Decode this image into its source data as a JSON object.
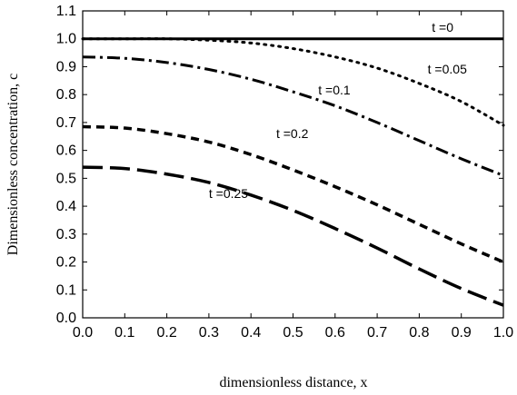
{
  "chart_data": {
    "type": "line",
    "title": "",
    "xlabel": "dimensionless distance, x",
    "ylabel": "Dimensionless concentration, c",
    "xlim": [
      0.0,
      1.0
    ],
    "ylim": [
      0.0,
      1.1
    ],
    "xticks": [
      "0.0",
      "0.1",
      "0.2",
      "0.3",
      "0.4",
      "0.5",
      "0.6",
      "0.7",
      "0.8",
      "0.9",
      "1.0"
    ],
    "yticks": [
      "0.0",
      "0.1",
      "0.2",
      "0.3",
      "0.4",
      "0.5",
      "0.6",
      "0.7",
      "0.8",
      "0.9",
      "1.0",
      "1.1"
    ],
    "grid": false,
    "legend": "none",
    "series": [
      {
        "name": "t=0",
        "style": "solid",
        "x": [
          0.0,
          1.0
        ],
        "y": [
          1.0,
          1.0
        ]
      },
      {
        "name": "t=0.05",
        "style": "dotted",
        "x": [
          0.0,
          0.1,
          0.2,
          0.3,
          0.4,
          0.5,
          0.6,
          0.7,
          0.8,
          0.9,
          1.0
        ],
        "y": [
          1.0,
          1.0,
          1.0,
          0.995,
          0.985,
          0.965,
          0.935,
          0.895,
          0.84,
          0.775,
          0.69
        ]
      },
      {
        "name": "t=0.1",
        "style": "dash-dot",
        "x": [
          0.0,
          0.1,
          0.2,
          0.3,
          0.4,
          0.5,
          0.6,
          0.7,
          0.8,
          0.9,
          1.0
        ],
        "y": [
          0.935,
          0.93,
          0.915,
          0.89,
          0.855,
          0.81,
          0.76,
          0.7,
          0.635,
          0.57,
          0.51
        ]
      },
      {
        "name": "t=0.2",
        "style": "dashed",
        "x": [
          0.0,
          0.1,
          0.2,
          0.3,
          0.4,
          0.5,
          0.6,
          0.7,
          0.8,
          0.9,
          1.0
        ],
        "y": [
          0.685,
          0.68,
          0.66,
          0.63,
          0.585,
          0.53,
          0.47,
          0.405,
          0.335,
          0.265,
          0.2
        ]
      },
      {
        "name": "t=0.25",
        "style": "long-dash",
        "x": [
          0.0,
          0.1,
          0.2,
          0.3,
          0.4,
          0.5,
          0.6,
          0.7,
          0.8,
          0.9,
          1.0
        ],
        "y": [
          0.54,
          0.535,
          0.515,
          0.485,
          0.44,
          0.385,
          0.32,
          0.25,
          0.175,
          0.105,
          0.045
        ]
      }
    ],
    "annotations": [
      {
        "text": "t =0",
        "x": 0.83,
        "y": 1.025
      },
      {
        "text": "t =0.05",
        "x": 0.82,
        "y": 0.875
      },
      {
        "text": "t =0.1",
        "x": 0.56,
        "y": 0.8
      },
      {
        "text": "t =0.2",
        "x": 0.46,
        "y": 0.645
      },
      {
        "text": "t =0.25",
        "x": 0.3,
        "y": 0.43
      }
    ]
  }
}
